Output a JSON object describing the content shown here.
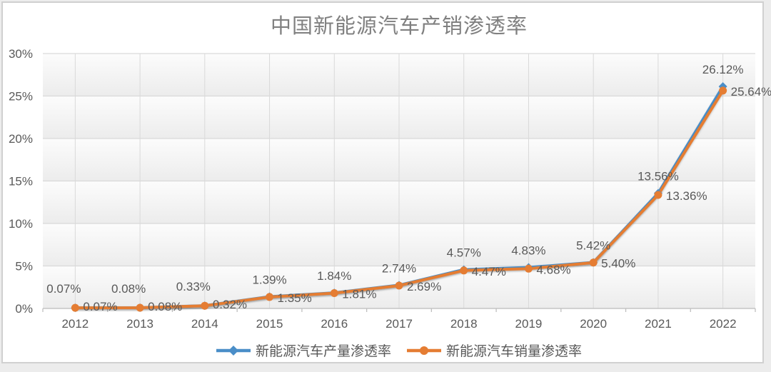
{
  "chart_data": {
    "type": "line",
    "title": "中国新能源汽车产销渗透率",
    "categories": [
      "2012",
      "2013",
      "2014",
      "2015",
      "2016",
      "2017",
      "2018",
      "2019",
      "2020",
      "2021",
      "2022"
    ],
    "series": [
      {
        "key": "production",
        "name": "新能源汽车产量渗透率",
        "color": "#4A8EC8",
        "marker": "diamond",
        "values": [
          0.07,
          0.08,
          0.33,
          1.39,
          1.84,
          2.74,
          4.57,
          4.83,
          5.42,
          13.56,
          26.12
        ],
        "labels": [
          "0.07%",
          "0.08%",
          "0.33%",
          "1.39%",
          "1.84%",
          "2.74%",
          "4.57%",
          "4.83%",
          "5.42%",
          "13.56%",
          "26.12%"
        ]
      },
      {
        "key": "sales",
        "name": "新能源汽车销量渗透率",
        "color": "#E57D33",
        "marker": "circle",
        "values": [
          0.07,
          0.08,
          0.32,
          1.35,
          1.81,
          2.69,
          4.47,
          4.68,
          5.4,
          13.36,
          25.64
        ],
        "labels": [
          "0.07%",
          "0.08%",
          "0.32%",
          "1.35%",
          "1.81%",
          "2.69%",
          "4.47%",
          "4.68%",
          "5.40%",
          "13.36%",
          "25.64%"
        ]
      }
    ],
    "y_axis": {
      "ticks": [
        "0%",
        "5%",
        "10%",
        "15%",
        "20%",
        "25%",
        "30%"
      ],
      "min": 0,
      "max": 30,
      "step": 5
    },
    "ylim": [
      0,
      30
    ],
    "grid": {
      "horizontal": true,
      "vertical": true
    },
    "legend_position": "bottom",
    "colors": {
      "title_text": "#808080",
      "label_text": "#595959",
      "axis_text": "#595959",
      "gridline": "#D9D9D9",
      "axis_line": "#BFBFBF",
      "plot_bg_light": "#FCFCFC",
      "plot_bg_dark": "#ECECEC"
    }
  }
}
